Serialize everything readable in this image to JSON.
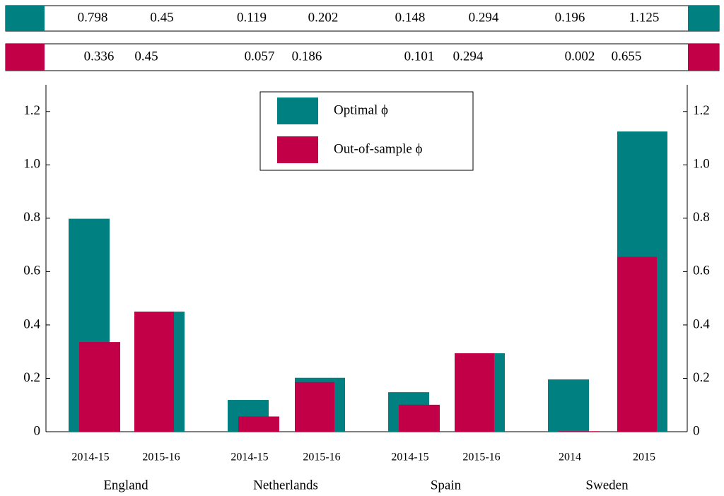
{
  "chart_data": {
    "type": "bar",
    "categories": [
      "2014-15",
      "2015-16",
      "2014-15",
      "2015-16",
      "2014-15",
      "2015-16",
      "2014",
      "2015"
    ],
    "groups": [
      "England",
      "Netherlands",
      "Spain",
      "Sweden"
    ],
    "series": [
      {
        "name": "Optimal ϕ",
        "color": "#008080",
        "values": [
          0.798,
          0.45,
          0.119,
          0.202,
          0.148,
          0.294,
          0.196,
          1.125
        ]
      },
      {
        "name": "Out-of-sample ϕ",
        "color": "#c20048",
        "values": [
          0.336,
          0.45,
          0.057,
          0.186,
          0.101,
          0.294,
          0.002,
          0.655
        ]
      }
    ],
    "ylim": [
      0,
      1.3
    ],
    "yticks": [
      0,
      0.2,
      0.4,
      0.6,
      0.8,
      {
        "value": 1,
        "label": "1.0"
      },
      1.2
    ],
    "legend": "top-center"
  }
}
